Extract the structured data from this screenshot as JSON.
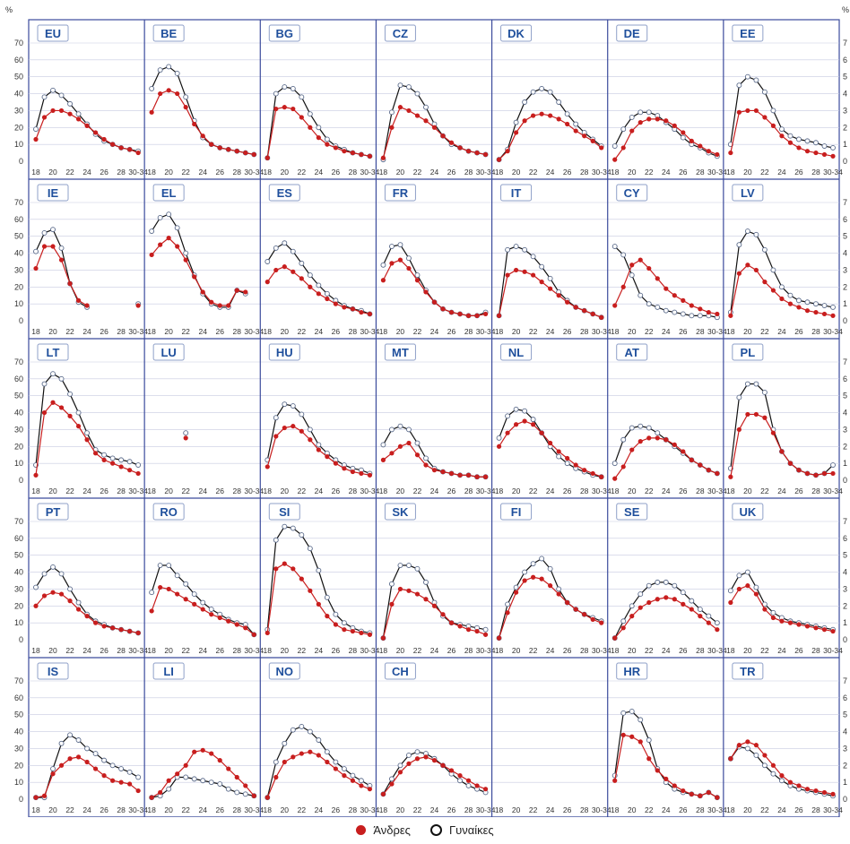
{
  "chart_data": {
    "type": "line",
    "y_unit_label": "%",
    "ylim": [
      0,
      70
    ],
    "y_ticks": [
      "0",
      "10",
      "20",
      "30",
      "40",
      "50",
      "60",
      "70"
    ],
    "x_ages": [
      18,
      19,
      20,
      21,
      22,
      23,
      24,
      25,
      26,
      27,
      28,
      29,
      30
    ],
    "x_tick_labels": [
      "18",
      "20",
      "22",
      "24",
      "26",
      "28",
      "30-34"
    ],
    "colors": {
      "men": "#c81e1e",
      "women": "#111111",
      "frame": "#3b4b9c",
      "panel_label": "#1f4f9c"
    },
    "legend": {
      "men": "Άνδρες",
      "women": "Γυναίκες"
    },
    "panels": [
      {
        "label": "EU",
        "men": [
          13,
          26,
          30,
          30,
          28,
          25,
          21,
          17,
          13,
          10,
          8,
          7,
          5
        ],
        "women": [
          19,
          38,
          42,
          39,
          34,
          28,
          22,
          16,
          12,
          10,
          8,
          7,
          6
        ]
      },
      {
        "label": "BE",
        "men": [
          29,
          40,
          42,
          40,
          32,
          22,
          15,
          10,
          8,
          7,
          6,
          5,
          4
        ],
        "women": [
          43,
          54,
          56,
          52,
          38,
          24,
          14,
          10,
          8,
          7,
          6,
          5,
          4
        ]
      },
      {
        "label": "BG",
        "men": [
          2,
          31,
          32,
          31,
          26,
          20,
          14,
          10,
          8,
          6,
          5,
          4,
          3
        ],
        "women": [
          2,
          40,
          44,
          43,
          38,
          28,
          20,
          13,
          9,
          7,
          5,
          4,
          3
        ]
      },
      {
        "label": "CZ",
        "men": [
          2,
          20,
          32,
          30,
          27,
          24,
          20,
          15,
          11,
          8,
          6,
          5,
          4
        ],
        "women": [
          1,
          29,
          45,
          44,
          40,
          32,
          22,
          15,
          10,
          8,
          6,
          5,
          4
        ]
      },
      {
        "label": "DK",
        "men": [
          1,
          6,
          17,
          24,
          27,
          28,
          27,
          25,
          22,
          18,
          15,
          12,
          8
        ],
        "women": [
          1,
          7,
          23,
          35,
          41,
          43,
          41,
          35,
          28,
          22,
          17,
          13,
          9
        ]
      },
      {
        "label": "DE",
        "men": [
          1,
          8,
          18,
          23,
          25,
          25,
          24,
          21,
          17,
          12,
          9,
          6,
          4
        ],
        "women": [
          9,
          19,
          26,
          29,
          29,
          27,
          23,
          19,
          14,
          10,
          8,
          5,
          3
        ]
      },
      {
        "label": "EE",
        "men": [
          5,
          29,
          30,
          30,
          26,
          21,
          15,
          11,
          8,
          6,
          5,
          4,
          3
        ],
        "women": [
          10,
          45,
          50,
          48,
          41,
          30,
          19,
          15,
          13,
          12,
          11,
          9,
          8
        ]
      },
      {
        "label": "IE",
        "men": [
          31,
          44,
          44,
          36,
          22,
          12,
          9,
          null,
          null,
          null,
          null,
          null,
          9
        ],
        "women": [
          41,
          52,
          54,
          43,
          22,
          11,
          8,
          null,
          null,
          null,
          null,
          null,
          10
        ]
      },
      {
        "label": "EL",
        "men": [
          39,
          45,
          49,
          44,
          36,
          26,
          17,
          11,
          9,
          9,
          18,
          17,
          null
        ],
        "women": [
          53,
          61,
          63,
          55,
          40,
          27,
          16,
          10,
          8,
          8,
          18,
          16,
          null
        ]
      },
      {
        "label": "ES",
        "men": [
          23,
          30,
          32,
          29,
          25,
          20,
          16,
          13,
          10,
          8,
          7,
          5,
          4
        ],
        "women": [
          35,
          43,
          46,
          41,
          34,
          27,
          21,
          16,
          12,
          9,
          7,
          6,
          4
        ]
      },
      {
        "label": "FR",
        "men": [
          24,
          34,
          36,
          31,
          24,
          17,
          11,
          7,
          5,
          4,
          3,
          3,
          4
        ],
        "women": [
          33,
          44,
          45,
          37,
          27,
          18,
          11,
          7,
          5,
          4,
          3,
          3,
          5
        ]
      },
      {
        "label": "IT",
        "men": [
          3,
          27,
          30,
          29,
          27,
          23,
          19,
          15,
          11,
          8,
          6,
          4,
          2
        ],
        "women": [
          3,
          42,
          44,
          42,
          38,
          32,
          25,
          17,
          12,
          8,
          6,
          4,
          2
        ]
      },
      {
        "label": "CY",
        "men": [
          9,
          20,
          33,
          36,
          31,
          25,
          19,
          15,
          12,
          9,
          7,
          5,
          4
        ],
        "women": [
          44,
          39,
          27,
          15,
          10,
          8,
          6,
          5,
          4,
          3,
          3,
          3,
          2
        ]
      },
      {
        "label": "LV",
        "men": [
          3,
          28,
          33,
          30,
          23,
          18,
          13,
          10,
          8,
          6,
          5,
          4,
          3
        ],
        "women": [
          5,
          45,
          53,
          51,
          42,
          30,
          20,
          15,
          12,
          11,
          10,
          9,
          8
        ]
      },
      {
        "label": "LT",
        "men": [
          3,
          40,
          46,
          43,
          38,
          32,
          24,
          16,
          12,
          10,
          8,
          6,
          4
        ],
        "women": [
          9,
          57,
          63,
          60,
          51,
          40,
          28,
          18,
          15,
          13,
          12,
          11,
          9
        ]
      },
      {
        "label": "LU",
        "men": [
          null,
          null,
          null,
          null,
          25,
          null,
          null,
          null,
          null,
          null,
          null,
          null,
          null
        ],
        "women": [
          null,
          null,
          null,
          null,
          28,
          null,
          null,
          null,
          null,
          null,
          null,
          null,
          null
        ]
      },
      {
        "label": "HU",
        "men": [
          8,
          26,
          31,
          32,
          29,
          24,
          18,
          14,
          10,
          7,
          5,
          4,
          3
        ],
        "women": [
          12,
          37,
          45,
          44,
          39,
          30,
          21,
          16,
          12,
          9,
          7,
          6,
          4
        ]
      },
      {
        "label": "MT",
        "men": [
          12,
          16,
          20,
          22,
          15,
          9,
          6,
          5,
          4,
          3,
          3,
          2,
          2
        ],
        "women": [
          21,
          30,
          32,
          30,
          22,
          13,
          7,
          5,
          4,
          3,
          3,
          2,
          2
        ]
      },
      {
        "label": "NL",
        "men": [
          20,
          28,
          33,
          35,
          33,
          28,
          22,
          17,
          13,
          9,
          6,
          4,
          2
        ],
        "women": [
          25,
          38,
          42,
          41,
          36,
          28,
          20,
          14,
          10,
          7,
          5,
          3,
          2
        ]
      },
      {
        "label": "AT",
        "men": [
          1,
          8,
          18,
          23,
          25,
          25,
          24,
          21,
          17,
          12,
          9,
          6,
          4
        ],
        "women": [
          10,
          24,
          31,
          32,
          31,
          28,
          24,
          20,
          16,
          12,
          9,
          6,
          4
        ]
      },
      {
        "label": "PL",
        "men": [
          2,
          30,
          39,
          39,
          37,
          28,
          17,
          10,
          6,
          4,
          3,
          4,
          4
        ],
        "women": [
          7,
          49,
          57,
          57,
          52,
          30,
          17,
          10,
          6,
          4,
          3,
          4,
          9
        ]
      },
      {
        "label": "PT",
        "men": [
          20,
          26,
          28,
          27,
          23,
          18,
          14,
          10,
          8,
          7,
          6,
          5,
          4
        ],
        "women": [
          31,
          39,
          43,
          39,
          30,
          22,
          15,
          11,
          9,
          7,
          6,
          5,
          4
        ]
      },
      {
        "label": "RO",
        "men": [
          17,
          31,
          30,
          27,
          24,
          21,
          18,
          15,
          13,
          11,
          9,
          7,
          3
        ],
        "women": [
          28,
          44,
          44,
          38,
          33,
          27,
          22,
          18,
          15,
          12,
          10,
          9,
          3
        ]
      },
      {
        "label": "SI",
        "men": [
          4,
          42,
          45,
          42,
          36,
          29,
          21,
          14,
          9,
          6,
          5,
          4,
          3
        ],
        "women": [
          6,
          59,
          67,
          66,
          62,
          54,
          41,
          25,
          15,
          10,
          7,
          5,
          4
        ]
      },
      {
        "label": "SK",
        "men": [
          1,
          21,
          30,
          29,
          27,
          24,
          20,
          15,
          10,
          8,
          6,
          5,
          3
        ],
        "women": [
          1,
          33,
          44,
          44,
          42,
          34,
          22,
          14,
          10,
          9,
          8,
          7,
          6
        ]
      },
      {
        "label": "FI",
        "men": [
          1,
          16,
          28,
          35,
          37,
          36,
          32,
          27,
          22,
          18,
          15,
          12,
          10
        ],
        "women": [
          1,
          21,
          31,
          40,
          45,
          48,
          42,
          30,
          22,
          18,
          15,
          13,
          11
        ]
      },
      {
        "label": "SE",
        "men": [
          1,
          7,
          14,
          19,
          22,
          24,
          25,
          24,
          21,
          18,
          14,
          10,
          6
        ],
        "women": [
          1,
          11,
          20,
          27,
          32,
          34,
          34,
          32,
          28,
          23,
          18,
          14,
          10
        ]
      },
      {
        "label": "UK",
        "men": [
          22,
          30,
          32,
          27,
          18,
          13,
          11,
          10,
          9,
          8,
          7,
          6,
          5
        ],
        "women": [
          29,
          38,
          40,
          31,
          21,
          16,
          13,
          11,
          10,
          9,
          8,
          7,
          6
        ]
      },
      {
        "label": "IS",
        "men": [
          1,
          2,
          15,
          20,
          24,
          25,
          22,
          18,
          14,
          11,
          10,
          9,
          5
        ],
        "women": [
          1,
          1,
          18,
          33,
          38,
          35,
          30,
          27,
          23,
          20,
          18,
          16,
          13
        ]
      },
      {
        "label": "LI",
        "men": [
          1,
          4,
          11,
          15,
          20,
          28,
          29,
          27,
          23,
          18,
          13,
          8,
          2
        ],
        "women": [
          1,
          2,
          6,
          13,
          13,
          12,
          11,
          10,
          9,
          6,
          4,
          3,
          2
        ]
      },
      {
        "label": "NO",
        "men": [
          1,
          13,
          22,
          25,
          27,
          28,
          26,
          22,
          18,
          14,
          11,
          8,
          6
        ],
        "women": [
          1,
          22,
          33,
          41,
          43,
          40,
          35,
          28,
          22,
          18,
          14,
          11,
          8
        ]
      },
      {
        "label": "CH",
        "men": [
          3,
          9,
          16,
          21,
          24,
          25,
          23,
          20,
          17,
          14,
          11,
          8,
          6
        ],
        "women": [
          3,
          12,
          20,
          26,
          28,
          27,
          24,
          20,
          15,
          11,
          8,
          6,
          4
        ]
      },
      null,
      {
        "label": "HR",
        "men": [
          11,
          38,
          37,
          34,
          24,
          17,
          12,
          8,
          5,
          3,
          2,
          4,
          1
        ],
        "women": [
          14,
          51,
          52,
          47,
          35,
          18,
          10,
          6,
          4,
          3,
          2,
          4,
          1
        ]
      },
      {
        "label": "TR",
        "men": [
          24,
          32,
          34,
          32,
          26,
          20,
          14,
          10,
          8,
          6,
          5,
          4,
          3
        ],
        "women": [
          24,
          31,
          30,
          26,
          20,
          15,
          11,
          8,
          6,
          5,
          4,
          3,
          2
        ]
      }
    ]
  }
}
